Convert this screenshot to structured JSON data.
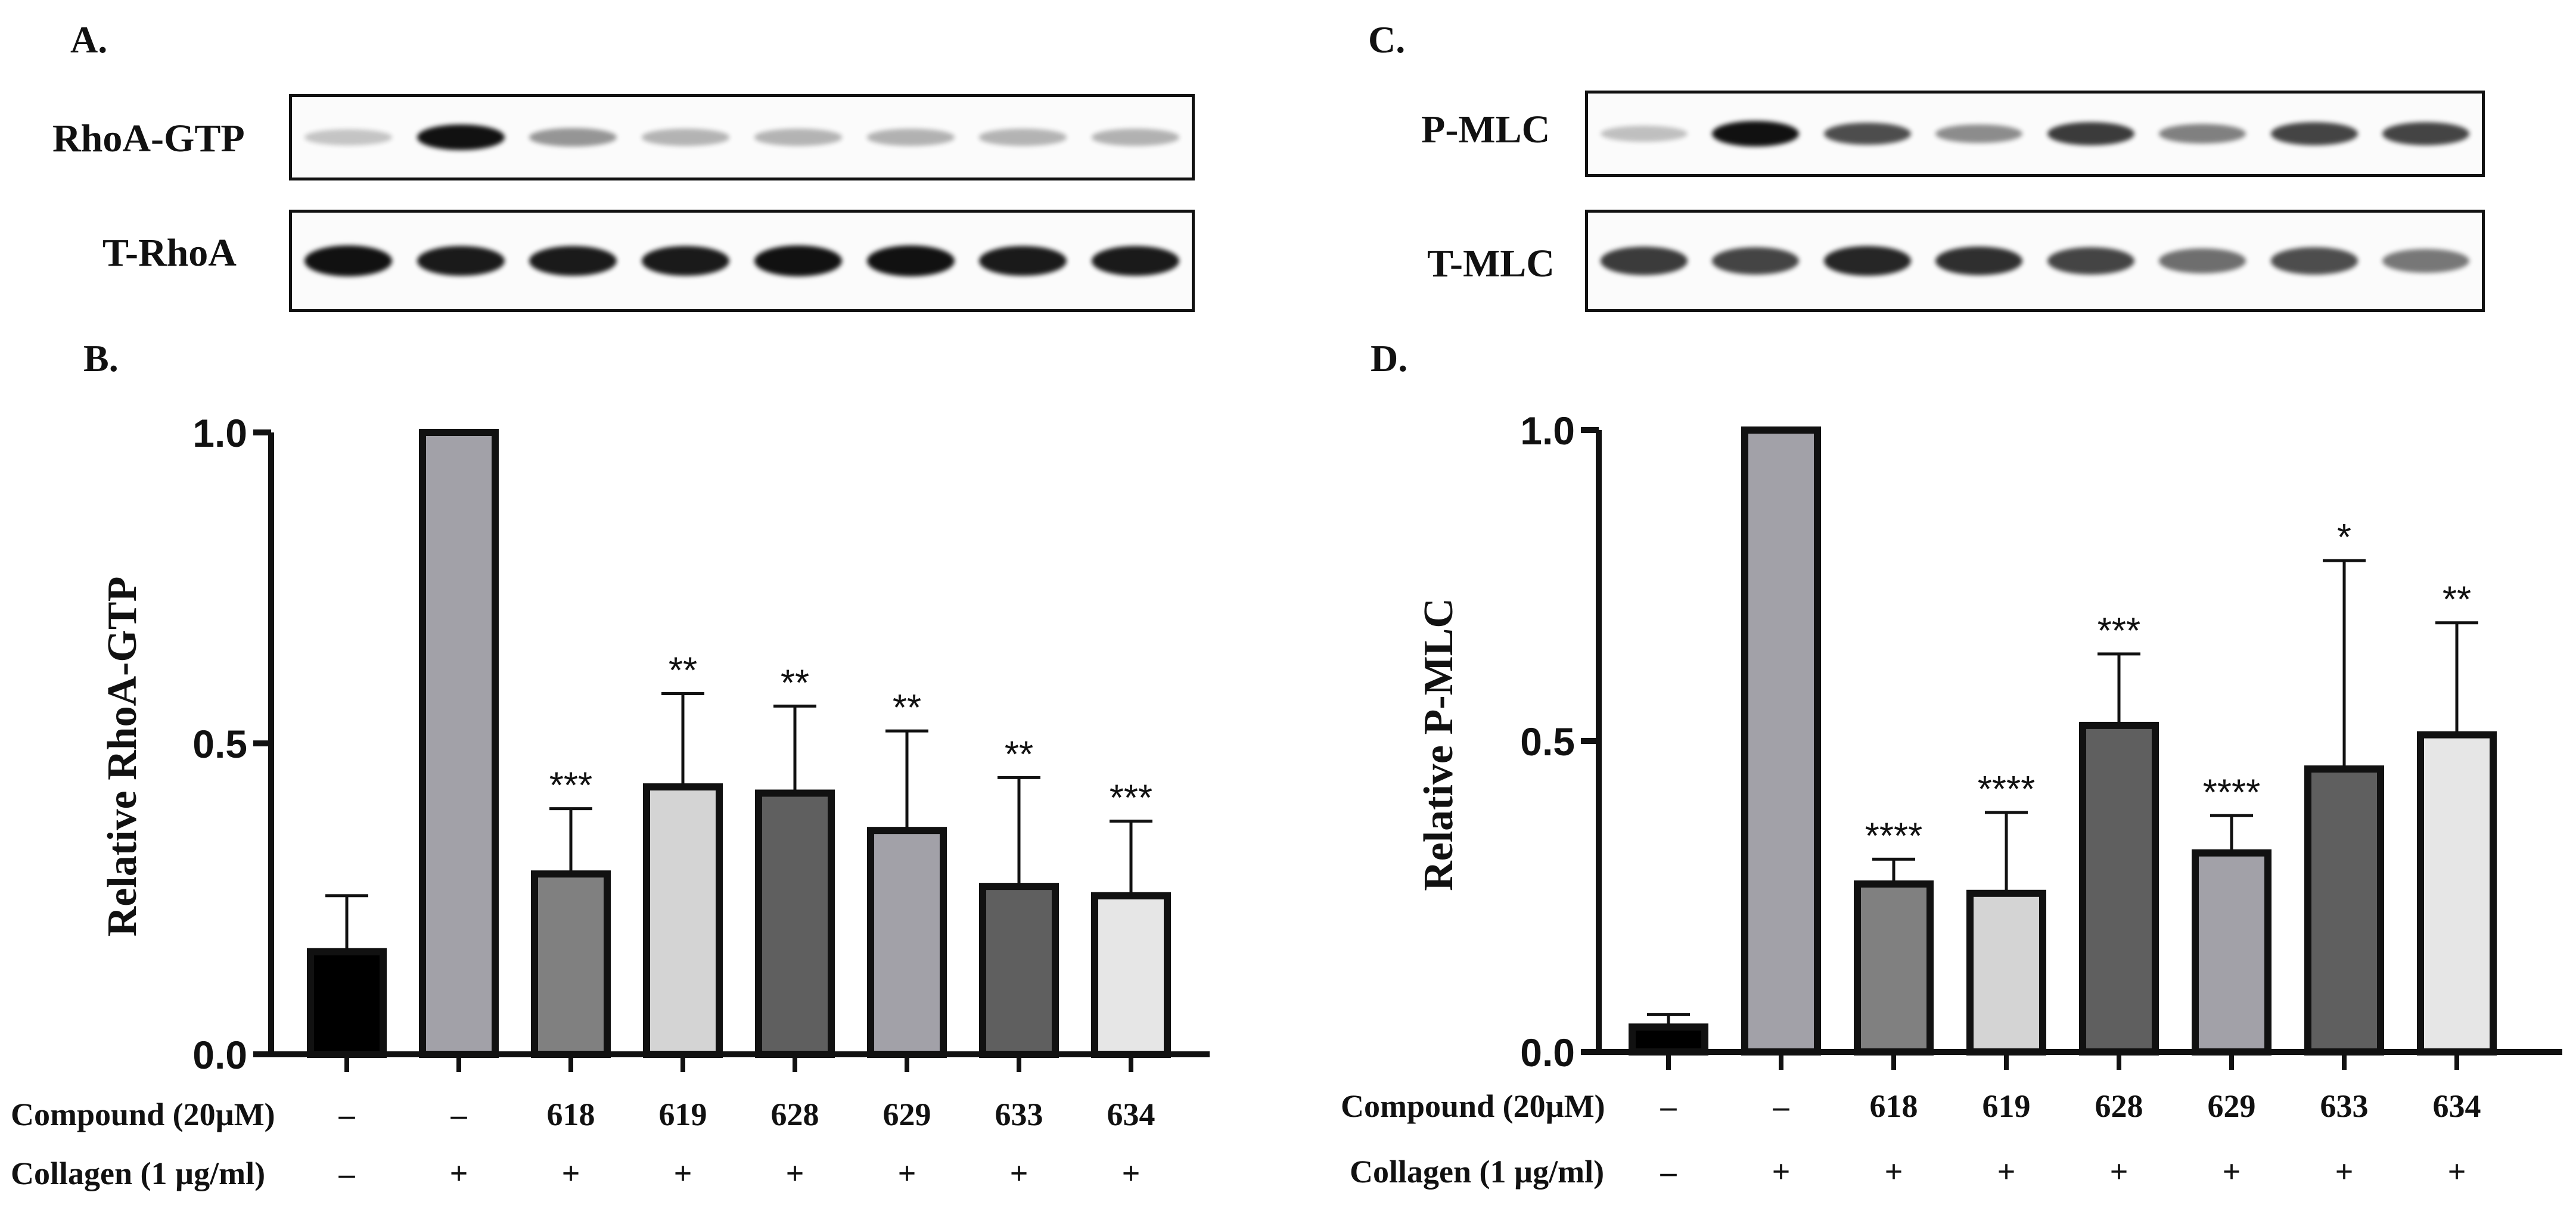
{
  "panels": {
    "a": {
      "letter": "A.",
      "bands": [
        {
          "label": "RhoA-GTP",
          "intensities": [
            0.12,
            1.0,
            0.35,
            0.2,
            0.2,
            0.22,
            0.2,
            0.22
          ]
        },
        {
          "label": "T-RhoA",
          "intensities": [
            1.0,
            0.95,
            0.95,
            0.95,
            1.0,
            1.0,
            0.95,
            0.95
          ]
        }
      ]
    },
    "b": {
      "letter": "B."
    },
    "c": {
      "letter": "C.",
      "bands": [
        {
          "label": "P-MLC",
          "intensities": [
            0.15,
            1.0,
            0.7,
            0.4,
            0.8,
            0.45,
            0.75,
            0.75
          ]
        },
        {
          "label": "T-MLC",
          "intensities": [
            0.8,
            0.75,
            0.9,
            0.85,
            0.75,
            0.55,
            0.7,
            0.5
          ]
        }
      ]
    },
    "d": {
      "letter": "D."
    }
  },
  "table": {
    "compound_label": "Compound (20µM)",
    "collagen_label": "Collagen (1 µg/ml)",
    "compound_values": [
      "–",
      "–",
      "618",
      "619",
      "628",
      "629",
      "633",
      "634"
    ],
    "collagen_values": [
      "–",
      "+",
      "+",
      "+",
      "+",
      "+",
      "+",
      "+"
    ]
  },
  "chart_data": [
    {
      "type": "bar",
      "panel": "B.",
      "categories": [
        "–",
        "–",
        "618",
        "619",
        "628",
        "629",
        "633",
        "634"
      ],
      "values": [
        0.165,
        1.0,
        0.29,
        0.43,
        0.42,
        0.36,
        0.27,
        0.255
      ],
      "errors": [
        0.09,
        0,
        0.105,
        0.15,
        0.14,
        0.16,
        0.175,
        0.12
      ],
      "significance": [
        "",
        "",
        "***",
        "**",
        "**",
        "**",
        "**",
        "***"
      ],
      "colors": [
        "#000000",
        "#a2a1a8",
        "#808080",
        "#d4d4d4",
        "#5f5f5f",
        "#a2a1a8",
        "#5f5f5f",
        "#e6e6e6"
      ],
      "ylabel": "Relative RhoA-GTP",
      "ylim": [
        0,
        1.0
      ],
      "yticks": [
        "0.0",
        "0.5",
        "1.0"
      ]
    },
    {
      "type": "bar",
      "panel": "D.",
      "categories": [
        "–",
        "–",
        "618",
        "619",
        "628",
        "629",
        "633",
        "634"
      ],
      "values": [
        0.04,
        1.0,
        0.27,
        0.255,
        0.525,
        0.32,
        0.455,
        0.51
      ],
      "errors": [
        0.02,
        0,
        0.04,
        0.13,
        0.115,
        0.06,
        0.335,
        0.18
      ],
      "significance": [
        "",
        "",
        "****",
        "****",
        "***",
        "****",
        "*",
        "**"
      ],
      "colors": [
        "#000000",
        "#a2a1a8",
        "#808080",
        "#d4d4d4",
        "#5f5f5f",
        "#a2a1a8",
        "#5f5f5f",
        "#e6e6e6"
      ],
      "ylabel": "Relative P-MLC",
      "ylim": [
        0,
        1.0
      ],
      "yticks": [
        "0.0",
        "0.5",
        "1.0"
      ]
    }
  ]
}
